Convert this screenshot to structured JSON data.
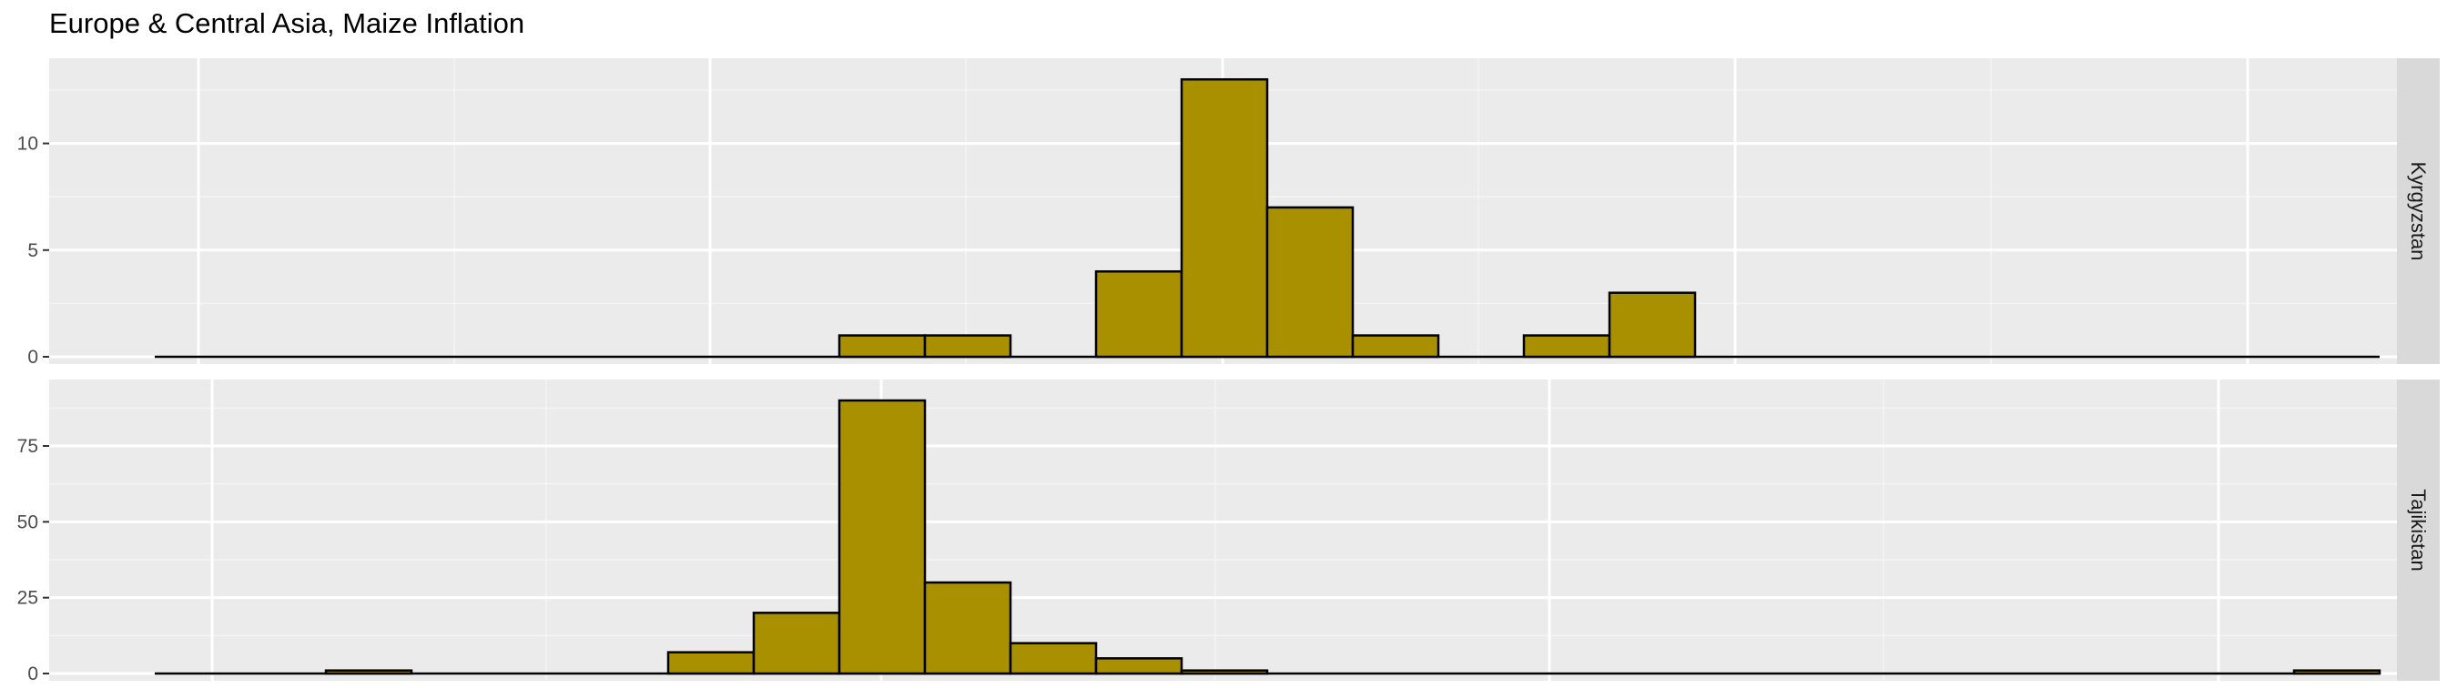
{
  "chart_data": {
    "type": "bar",
    "title": "Europe & Central Asia, Maize Inflation",
    "xlabel": "",
    "ylabel": "",
    "fill_color": "#A89000",
    "bin_count": 26,
    "facets": [
      {
        "name": "Kyrgyzstan",
        "values": [
          0,
          0,
          0,
          0,
          0,
          0,
          0,
          0,
          1,
          1,
          0,
          4,
          13,
          7,
          1,
          0,
          1,
          3,
          0,
          0,
          0,
          0,
          0,
          0,
          0,
          0
        ],
        "ylim": [
          0,
          13.65
        ],
        "y_ticks": [
          0,
          5,
          10
        ],
        "y_tick_labels": [
          "0",
          "5",
          "10"
        ]
      },
      {
        "name": "Tajikistan",
        "values": [
          0,
          0,
          1,
          0,
          0,
          0,
          7,
          20,
          90,
          30,
          10,
          5,
          1,
          0,
          0,
          0,
          0,
          0,
          0,
          0,
          0,
          0,
          0,
          0,
          0,
          1
        ],
        "ylim": [
          0,
          94.5
        ],
        "y_ticks": [
          0,
          25,
          50,
          75
        ],
        "y_tick_labels": [
          "0",
          "25",
          "50",
          "75"
        ]
      }
    ]
  }
}
